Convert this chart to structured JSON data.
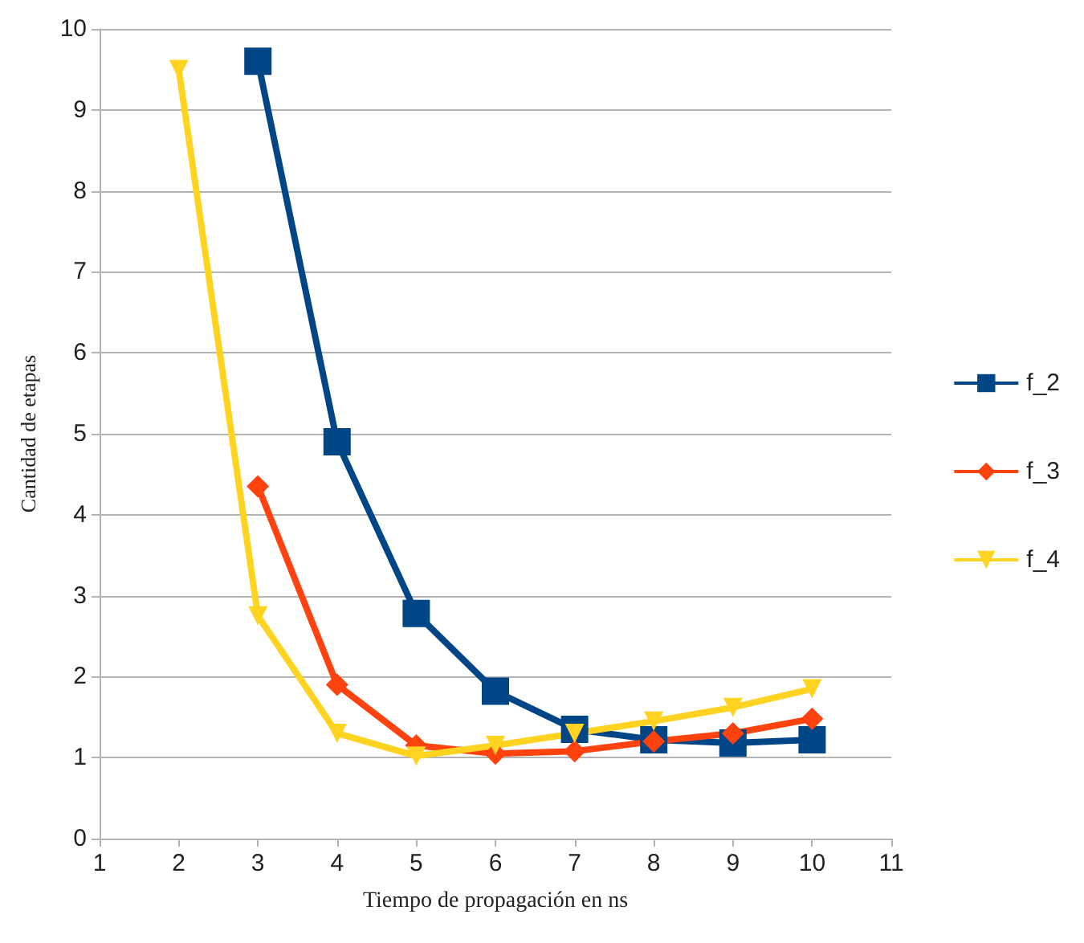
{
  "chart_data": {
    "type": "line",
    "xlabel": "Tiempo de propagación en ns",
    "ylabel": "Cantidad de etapas",
    "xlim": [
      1,
      11
    ],
    "xticks": [
      1,
      2,
      3,
      4,
      5,
      6,
      7,
      8,
      9,
      10,
      11
    ],
    "ylim": [
      0,
      10
    ],
    "yticks": [
      0,
      1,
      2,
      3,
      4,
      5,
      6,
      7,
      8,
      9,
      10
    ],
    "grid": "y",
    "legend": "right",
    "series": [
      {
        "name": "f_2",
        "color": "#004586",
        "marker": "square",
        "x": [
          3,
          4,
          5,
          6,
          7,
          8,
          9,
          10
        ],
        "values": [
          9.6,
          4.9,
          2.78,
          1.82,
          1.35,
          1.22,
          1.18,
          1.22
        ]
      },
      {
        "name": "f_3",
        "color": "#ff420e",
        "marker": "diamond",
        "x": [
          3,
          4,
          5,
          6,
          7,
          8,
          9,
          10
        ],
        "values": [
          4.35,
          1.9,
          1.15,
          1.05,
          1.08,
          1.2,
          1.3,
          1.48
        ]
      },
      {
        "name": "f_4",
        "color": "#ffd320",
        "marker": "triangle",
        "x": [
          2,
          3,
          4,
          5,
          6,
          7,
          8,
          9,
          10
        ],
        "values": [
          9.5,
          2.75,
          1.3,
          1.02,
          1.15,
          1.3,
          1.45,
          1.62,
          1.85
        ]
      }
    ]
  }
}
